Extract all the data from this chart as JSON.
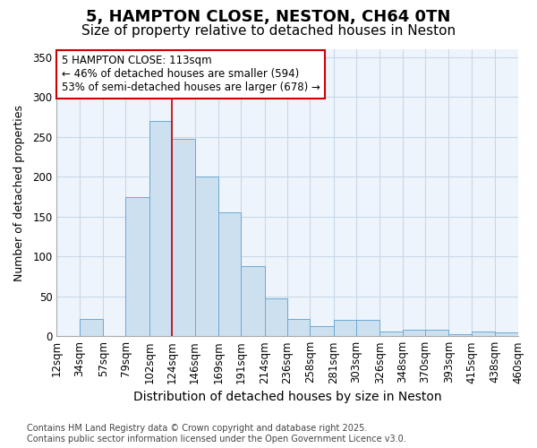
{
  "title1": "5, HAMPTON CLOSE, NESTON, CH64 0TN",
  "title2": "Size of property relative to detached houses in Neston",
  "xlabel": "Distribution of detached houses by size in Neston",
  "ylabel": "Number of detached properties",
  "bin_labels": [
    "12sqm",
    "34sqm",
    "57sqm",
    "79sqm",
    "102sqm",
    "124sqm",
    "146sqm",
    "169sqm",
    "191sqm",
    "214sqm",
    "236sqm",
    "258sqm",
    "281sqm",
    "303sqm",
    "326sqm",
    "348sqm",
    "370sqm",
    "393sqm",
    "415sqm",
    "438sqm",
    "460sqm"
  ],
  "bar_values": [
    0,
    22,
    0,
    175,
    270,
    248,
    200,
    155,
    88,
    47,
    22,
    13,
    20,
    20,
    6,
    8,
    8,
    3,
    6,
    5,
    0
  ],
  "bar_color": "#cde0f0",
  "bar_edge_color": "#6aaad4",
  "ylim": [
    0,
    360
  ],
  "yticks": [
    0,
    50,
    100,
    150,
    200,
    250,
    300,
    350
  ],
  "annotation_text": "5 HAMPTON CLOSE: 113sqm\n← 46% of detached houses are smaller (594)\n53% of semi-detached houses are larger (678) →",
  "annotation_box_color": "#ffffff",
  "annotation_box_edge": "#cc0000",
  "vline_x": 124,
  "vline_color": "#cc0000",
  "bg_color": "#ffffff",
  "plot_bg_color": "#eef4fb",
  "grid_color": "#c8d8e8",
  "footer": "Contains HM Land Registry data © Crown copyright and database right 2025.\nContains public sector information licensed under the Open Government Licence v3.0.",
  "title1_fontsize": 13,
  "title2_fontsize": 11,
  "xlabel_fontsize": 10,
  "ylabel_fontsize": 9,
  "tick_fontsize": 8.5,
  "annotation_fontsize": 8.5,
  "footer_fontsize": 7
}
